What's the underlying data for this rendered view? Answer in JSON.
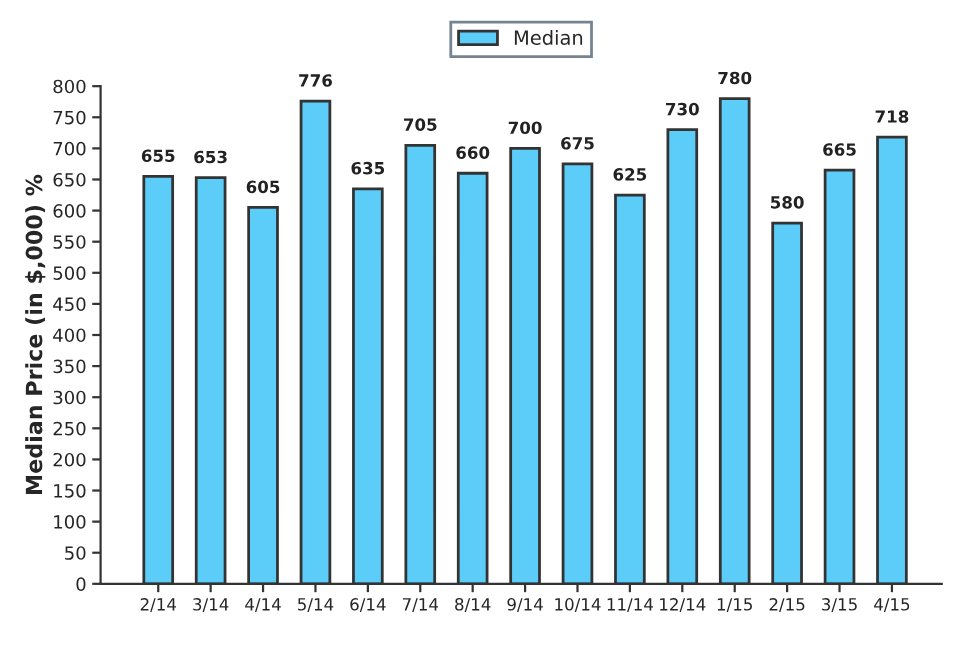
{
  "chart_data": {
    "type": "bar",
    "ylabel": "Median Price (in $,000) %",
    "categories": [
      "2/14",
      "3/14",
      "4/14",
      "5/14",
      "6/14",
      "7/14",
      "8/14",
      "9/14",
      "10/14",
      "11/14",
      "12/14",
      "1/15",
      "2/15",
      "3/15",
      "4/15"
    ],
    "series": [
      {
        "name": "Median",
        "color": "#5bcdf8",
        "values": [
          655,
          653,
          605,
          776,
          635,
          705,
          660,
          700,
          675,
          625,
          730,
          780,
          580,
          665,
          718
        ]
      }
    ],
    "ylim": [
      0,
      800
    ],
    "yticks": [
      0,
      50,
      100,
      150,
      200,
      250,
      300,
      350,
      400,
      450,
      500,
      550,
      600,
      650,
      700,
      750,
      800
    ],
    "data_labels": true,
    "legend": "top",
    "grid": false
  }
}
